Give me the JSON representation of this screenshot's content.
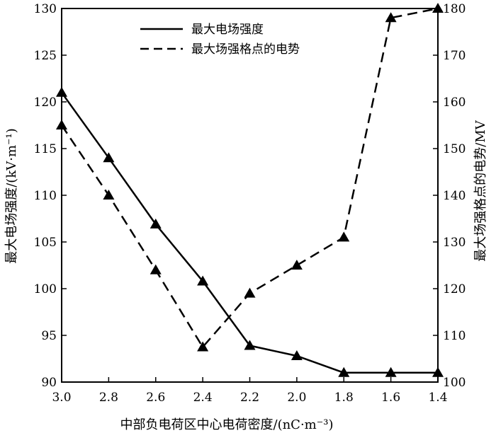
{
  "chart_data": {
    "type": "line",
    "xlabel": "中部负电荷区中心电荷密度/(nC·m⁻³)",
    "ylabel_left": "最大电场强度/(kV·m⁻¹)",
    "ylabel_right": "最大场强格点的电势/MV",
    "x_reversed": true,
    "xlim": [
      3.0,
      1.4
    ],
    "ylim_left": [
      90,
      130
    ],
    "ylim_right": [
      100,
      180
    ],
    "x_ticks": [
      "3.0",
      "2.8",
      "2.6",
      "2.4",
      "2.2",
      "2.0",
      "1.8",
      "1.6",
      "1.4"
    ],
    "y_ticks_left": [
      "90",
      "95",
      "100",
      "105",
      "110",
      "115",
      "120",
      "125",
      "130"
    ],
    "y_ticks_right": [
      "100",
      "110",
      "120",
      "130",
      "140",
      "150",
      "160",
      "170",
      "180"
    ],
    "legend_position": "top-center",
    "series": [
      {
        "name": "最大电场强度",
        "axis": "left",
        "style": "solid",
        "marker": "triangle",
        "x": [
          3.0,
          2.8,
          2.6,
          2.4,
          2.2,
          2.0,
          1.8,
          1.6,
          1.4
        ],
        "y": [
          121.0,
          114.0,
          106.9,
          100.8,
          93.9,
          92.8,
          91.0,
          91.0,
          91.0
        ]
      },
      {
        "name": "最大场强格点的电势",
        "axis": "right",
        "style": "dashed",
        "marker": "triangle",
        "x": [
          3.0,
          2.8,
          2.6,
          2.4,
          2.2,
          2.0,
          1.8,
          1.6,
          1.4
        ],
        "y": [
          155.0,
          140.0,
          124.0,
          107.5,
          119.0,
          125.0,
          131.0,
          178.0,
          180.0
        ]
      }
    ]
  }
}
